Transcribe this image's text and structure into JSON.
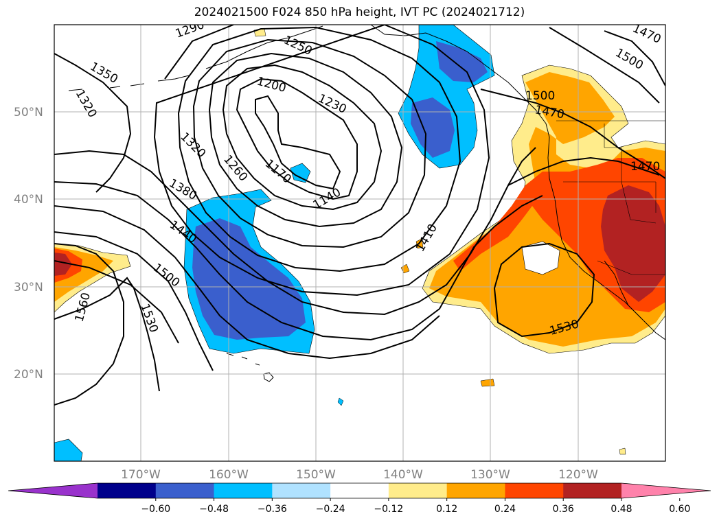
{
  "title": "2024021500 F024 850 hPa height, IVT PC (2024021712)",
  "lat_ticks": [
    "50°N",
    "40°N",
    "30°N",
    "20°N"
  ],
  "lon_ticks": [
    "170°W",
    "160°W",
    "150°W",
    "140°W",
    "130°W",
    "120°W"
  ],
  "colorbar": {
    "tick_labels": [
      "−0.60",
      "−0.48",
      "−0.36",
      "−0.24",
      "−0.12",
      "0.12",
      "0.24",
      "0.36",
      "0.48",
      "0.60"
    ],
    "colors": [
      "#9932cc",
      "#00008b",
      "#3a5fcd",
      "#00bfff",
      "#b0e2ff",
      "#ffffff",
      "#ffec8b",
      "#ffa500",
      "#ff4500",
      "#b22222",
      "#ff82ab"
    ]
  },
  "contour_labels": [
    {
      "text": "1290"
    },
    {
      "text": "1250"
    },
    {
      "text": "1350"
    },
    {
      "text": "1320"
    },
    {
      "text": "1200"
    },
    {
      "text": "1230"
    },
    {
      "text": "1320"
    },
    {
      "text": "1260"
    },
    {
      "text": "1170"
    },
    {
      "text": "1140"
    },
    {
      "text": "1380"
    },
    {
      "text": "1440"
    },
    {
      "text": "1500"
    },
    {
      "text": "1410"
    },
    {
      "text": "1560"
    },
    {
      "text": "1530"
    },
    {
      "text": "1500"
    },
    {
      "text": "1470"
    },
    {
      "text": "1470"
    },
    {
      "text": "1530"
    },
    {
      "text": "1470"
    },
    {
      "text": "1500"
    }
  ],
  "colors": {
    "grid": "#b0b0b0",
    "tick_text": "#808080",
    "contour": "#000000"
  }
}
